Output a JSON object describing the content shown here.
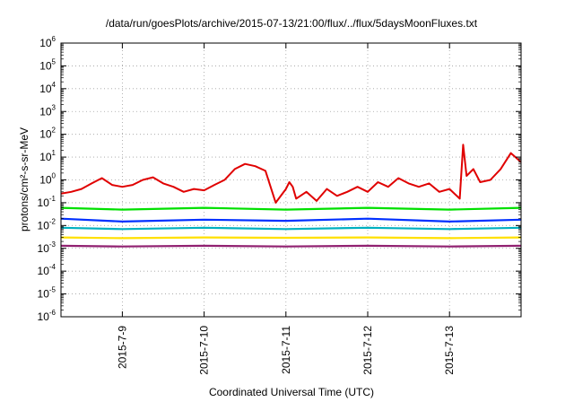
{
  "chart_data": {
    "type": "line",
    "title": "/data/run/goesPlots/archive/2015-07-13/21:00/flux/../flux/5daysMoonFluxes.txt",
    "xlabel": "Coordinated Universal Time (UTC)",
    "ylabel": "protons/cm²-s-sr-MeV",
    "yscale": "log",
    "ylim": [
      1e-06,
      1000000.0
    ],
    "y_ticks": [
      {
        "value": 1e-06,
        "base": "10",
        "exp": "-6"
      },
      {
        "value": 1e-05,
        "base": "10",
        "exp": "-5"
      },
      {
        "value": 0.0001,
        "base": "10",
        "exp": "-4"
      },
      {
        "value": 0.001,
        "base": "10",
        "exp": "-3"
      },
      {
        "value": 0.01,
        "base": "10",
        "exp": "-2"
      },
      {
        "value": 0.1,
        "base": "10",
        "exp": "-1"
      },
      {
        "value": 1,
        "base": "10",
        "exp": "0"
      },
      {
        "value": 10,
        "base": "10",
        "exp": "1"
      },
      {
        "value": 100,
        "base": "10",
        "exp": "2"
      },
      {
        "value": 1000,
        "base": "10",
        "exp": "3"
      },
      {
        "value": 10000,
        "base": "10",
        "exp": "4"
      },
      {
        "value": 100000,
        "base": "10",
        "exp": "5"
      },
      {
        "value": 1000000,
        "base": "10",
        "exp": "6"
      }
    ],
    "xlim": [
      "2015-07-08 06:00",
      "2015-07-13 21:00"
    ],
    "x_ticks": [
      {
        "value": "2015-07-09 00:00",
        "label": "2015-7-9"
      },
      {
        "value": "2015-07-10 00:00",
        "label": "2015-7-10"
      },
      {
        "value": "2015-07-11 00:00",
        "label": "2015-7-11"
      },
      {
        "value": "2015-07-12 00:00",
        "label": "2015-7-12"
      },
      {
        "value": "2015-07-13 00:00",
        "label": "2015-7-13"
      }
    ],
    "grid": true,
    "series": [
      {
        "color": "#e00000",
        "x": [
          "2015-07-08 06:00",
          "2015-07-08 09:00",
          "2015-07-08 12:00",
          "2015-07-08 15:00",
          "2015-07-08 18:00",
          "2015-07-08 21:00",
          "2015-07-09 00:00",
          "2015-07-09 03:00",
          "2015-07-09 06:00",
          "2015-07-09 09:00",
          "2015-07-09 12:00",
          "2015-07-09 15:00",
          "2015-07-09 18:00",
          "2015-07-09 21:00",
          "2015-07-10 00:00",
          "2015-07-10 03:00",
          "2015-07-10 06:00",
          "2015-07-10 09:00",
          "2015-07-10 12:00",
          "2015-07-10 15:00",
          "2015-07-10 18:00",
          "2015-07-10 21:00",
          "2015-07-11 00:00",
          "2015-07-11 01:00",
          "2015-07-11 02:00",
          "2015-07-11 03:00",
          "2015-07-11 06:00",
          "2015-07-11 09:00",
          "2015-07-11 12:00",
          "2015-07-11 15:00",
          "2015-07-11 18:00",
          "2015-07-11 21:00",
          "2015-07-12 00:00",
          "2015-07-12 03:00",
          "2015-07-12 06:00",
          "2015-07-12 09:00",
          "2015-07-12 12:00",
          "2015-07-12 15:00",
          "2015-07-12 18:00",
          "2015-07-12 21:00",
          "2015-07-13 00:00",
          "2015-07-13 03:00",
          "2015-07-13 04:00",
          "2015-07-13 05:00",
          "2015-07-13 07:00",
          "2015-07-13 09:00",
          "2015-07-13 12:00",
          "2015-07-13 15:00",
          "2015-07-13 18:00",
          "2015-07-13 21:00"
        ],
        "y": [
          0.25,
          0.3,
          0.4,
          0.7,
          1.2,
          0.6,
          0.5,
          0.6,
          1.0,
          1.3,
          0.7,
          0.5,
          0.3,
          0.4,
          0.35,
          0.6,
          1.0,
          3.0,
          5.0,
          4.0,
          2.5,
          0.1,
          0.4,
          0.8,
          0.5,
          0.15,
          0.3,
          0.12,
          0.4,
          0.2,
          0.3,
          0.5,
          0.3,
          0.8,
          0.5,
          1.2,
          0.7,
          0.5,
          0.7,
          0.3,
          0.4,
          0.15,
          35,
          1.5,
          3,
          0.8,
          1,
          3,
          15,
          6
        ]
      },
      {
        "color": "#00e000",
        "x": [
          "2015-07-08 06:00",
          "2015-07-09 00:00",
          "2015-07-10 00:00",
          "2015-07-11 00:00",
          "2015-07-12 00:00",
          "2015-07-13 00:00",
          "2015-07-13 21:00"
        ],
        "y": [
          0.06,
          0.05,
          0.06,
          0.05,
          0.06,
          0.05,
          0.06
        ]
      },
      {
        "color": "#0030ff",
        "x": [
          "2015-07-08 06:00",
          "2015-07-09 00:00",
          "2015-07-10 00:00",
          "2015-07-11 00:00",
          "2015-07-12 00:00",
          "2015-07-13 00:00",
          "2015-07-13 21:00"
        ],
        "y": [
          0.02,
          0.015,
          0.018,
          0.016,
          0.02,
          0.015,
          0.018
        ]
      },
      {
        "color": "#00b0c0",
        "x": [
          "2015-07-08 06:00",
          "2015-07-09 00:00",
          "2015-07-10 00:00",
          "2015-07-11 00:00",
          "2015-07-12 00:00",
          "2015-07-13 00:00",
          "2015-07-13 21:00"
        ],
        "y": [
          0.008,
          0.007,
          0.008,
          0.007,
          0.008,
          0.007,
          0.008
        ]
      },
      {
        "color": "#ffe000",
        "x": [
          "2015-07-08 06:00",
          "2015-07-09 00:00",
          "2015-07-10 00:00",
          "2015-07-11 00:00",
          "2015-07-12 00:00",
          "2015-07-13 00:00",
          "2015-07-13 21:00"
        ],
        "y": [
          0.003,
          0.0028,
          0.003,
          0.0029,
          0.003,
          0.0028,
          0.003
        ]
      },
      {
        "color": "#902070",
        "x": [
          "2015-07-08 06:00",
          "2015-07-09 00:00",
          "2015-07-10 00:00",
          "2015-07-11 00:00",
          "2015-07-12 00:00",
          "2015-07-13 00:00",
          "2015-07-13 21:00"
        ],
        "y": [
          0.0013,
          0.0012,
          0.0013,
          0.0012,
          0.0013,
          0.0012,
          0.0013
        ]
      }
    ]
  }
}
